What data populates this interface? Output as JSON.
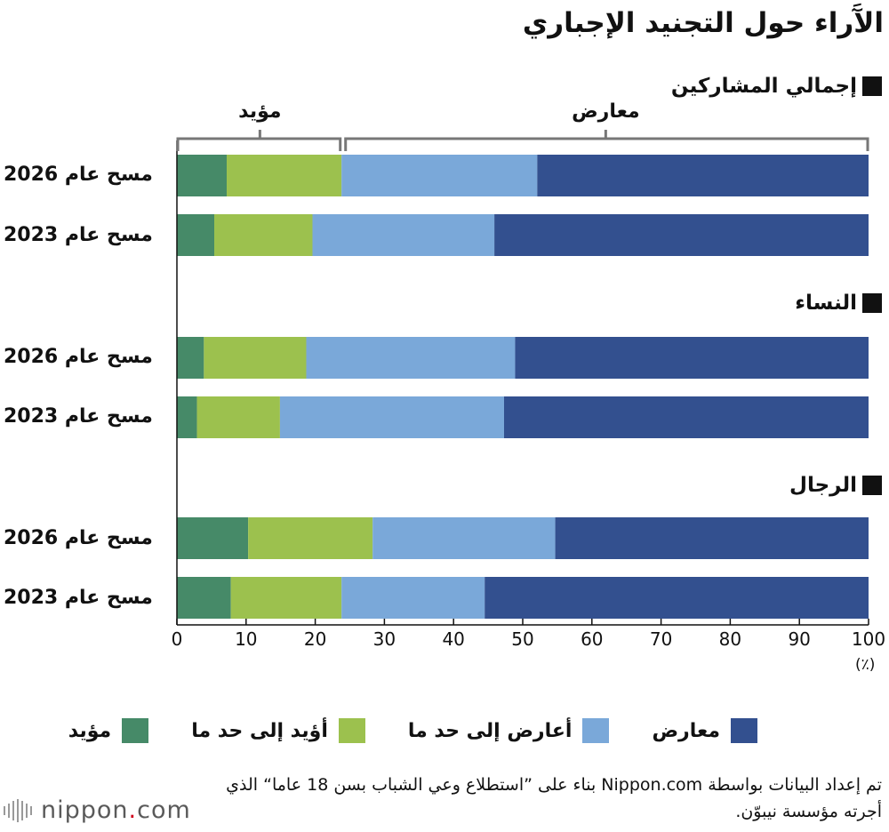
{
  "title": "الآَراء حول التجنيد الإجباري",
  "groups": [
    {
      "label": "إجمالي المشاركين"
    },
    {
      "label": "النساء"
    },
    {
      "label": "الرجال"
    }
  ],
  "brackets": {
    "support_label": "مؤيد",
    "oppose_label": "معارض",
    "split_at": 24
  },
  "axis": {
    "unit": "(٪)"
  },
  "legend": [
    {
      "label": "معارض",
      "color": "#33508f"
    },
    {
      "label": "أعارض إلى حد ما",
      "color": "#7aa8d9"
    },
    {
      "label": "أؤيد إلى حد ما",
      "color": "#9cc14e"
    },
    {
      "label": "مؤيد",
      "color": "#468a68"
    }
  ],
  "footnote": "تم إعداد البيانات بواسطة Nippon.com بناء على ”استطلاع وعي الشباب بسن 18 عاما“ الذي أجرته مؤسسة نيبوّن.",
  "logo": {
    "text": "nippon",
    "dot": ".",
    "suffix": "com"
  },
  "chart_data": {
    "type": "bar",
    "orientation": "horizontal",
    "stacked": true,
    "xlim": [
      0,
      100
    ],
    "ticks": [
      0,
      10,
      20,
      30,
      40,
      50,
      60,
      70,
      80,
      90,
      100
    ],
    "series_order": [
      "مؤيد",
      "أؤيد إلى حد ما",
      "أعارض إلى حد ما",
      "معارض"
    ],
    "colors": [
      "#468a68",
      "#9cc14e",
      "#7aa8d9",
      "#33508f"
    ],
    "rows": [
      {
        "group": "إجمالي المشاركين",
        "label": "مسح عام 2026",
        "values": [
          7.2,
          16.6,
          28.3,
          47.9
        ]
      },
      {
        "group": "إجمالي المشاركين",
        "label": "مسح عام 2023",
        "values": [
          5.4,
          14.2,
          26.3,
          54.1
        ]
      },
      {
        "group": "النساء",
        "label": "مسح عام 2026",
        "values": [
          3.9,
          14.8,
          30.2,
          51.1
        ]
      },
      {
        "group": "النساء",
        "label": "مسح عام 2023",
        "values": [
          2.9,
          12.0,
          32.4,
          52.7
        ]
      },
      {
        "group": "الرجال",
        "label": "مسح عام 2026",
        "values": [
          10.3,
          18.0,
          26.4,
          45.3
        ]
      },
      {
        "group": "الرجال",
        "label": "مسح عام 2023",
        "values": [
          7.8,
          16.0,
          20.7,
          55.5
        ]
      }
    ]
  }
}
